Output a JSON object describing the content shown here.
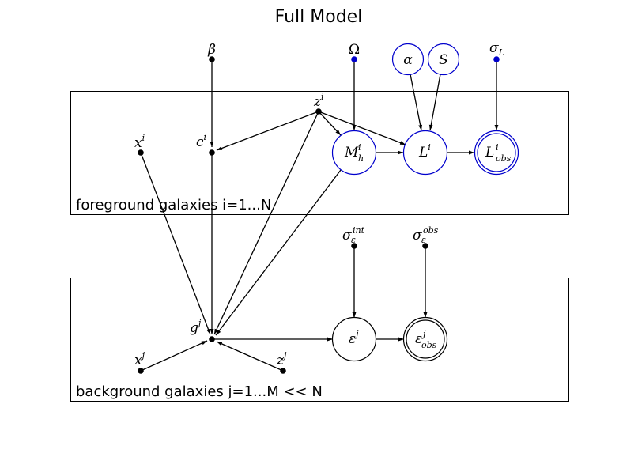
{
  "title": "Full Model",
  "colors": {
    "line": "#000000",
    "highlight": "#0000cc"
  },
  "plates": {
    "foreground": {
      "label": "foreground galaxies i=1...N"
    },
    "background": {
      "label": "background galaxies j=1...M << N"
    }
  },
  "nodes": {
    "beta": {
      "sym": "β"
    },
    "Omega": {
      "sym": "Ω"
    },
    "alpha": {
      "sym": "α"
    },
    "S": {
      "sym": "S"
    },
    "sigmaL": {
      "sym": "σ",
      "sub": "L"
    },
    "zi": {
      "sym": "z",
      "sup": "i"
    },
    "xi": {
      "sym": "x",
      "sup": "i"
    },
    "ci": {
      "sym": "c",
      "sup": "i"
    },
    "Mh": {
      "sym": "M",
      "sub": "h",
      "sup": "i"
    },
    "Li": {
      "sym": "L",
      "sup": "i"
    },
    "Lobs": {
      "sym": "L",
      "sub": "obs",
      "sup": "i"
    },
    "sigInt": {
      "sym": "σ",
      "sub": "ε",
      "sup": "int"
    },
    "sigObs": {
      "sym": "σ",
      "sub": "ε",
      "sup": "obs"
    },
    "gj": {
      "sym": "g",
      "sup": "j"
    },
    "epsj": {
      "sym": "ε",
      "sup": "j"
    },
    "epsobs": {
      "sym": "ε",
      "sub": "obs",
      "sup": "j"
    },
    "xj": {
      "sym": "x",
      "sup": "j"
    },
    "zj": {
      "sym": "z",
      "sup": "j"
    }
  }
}
